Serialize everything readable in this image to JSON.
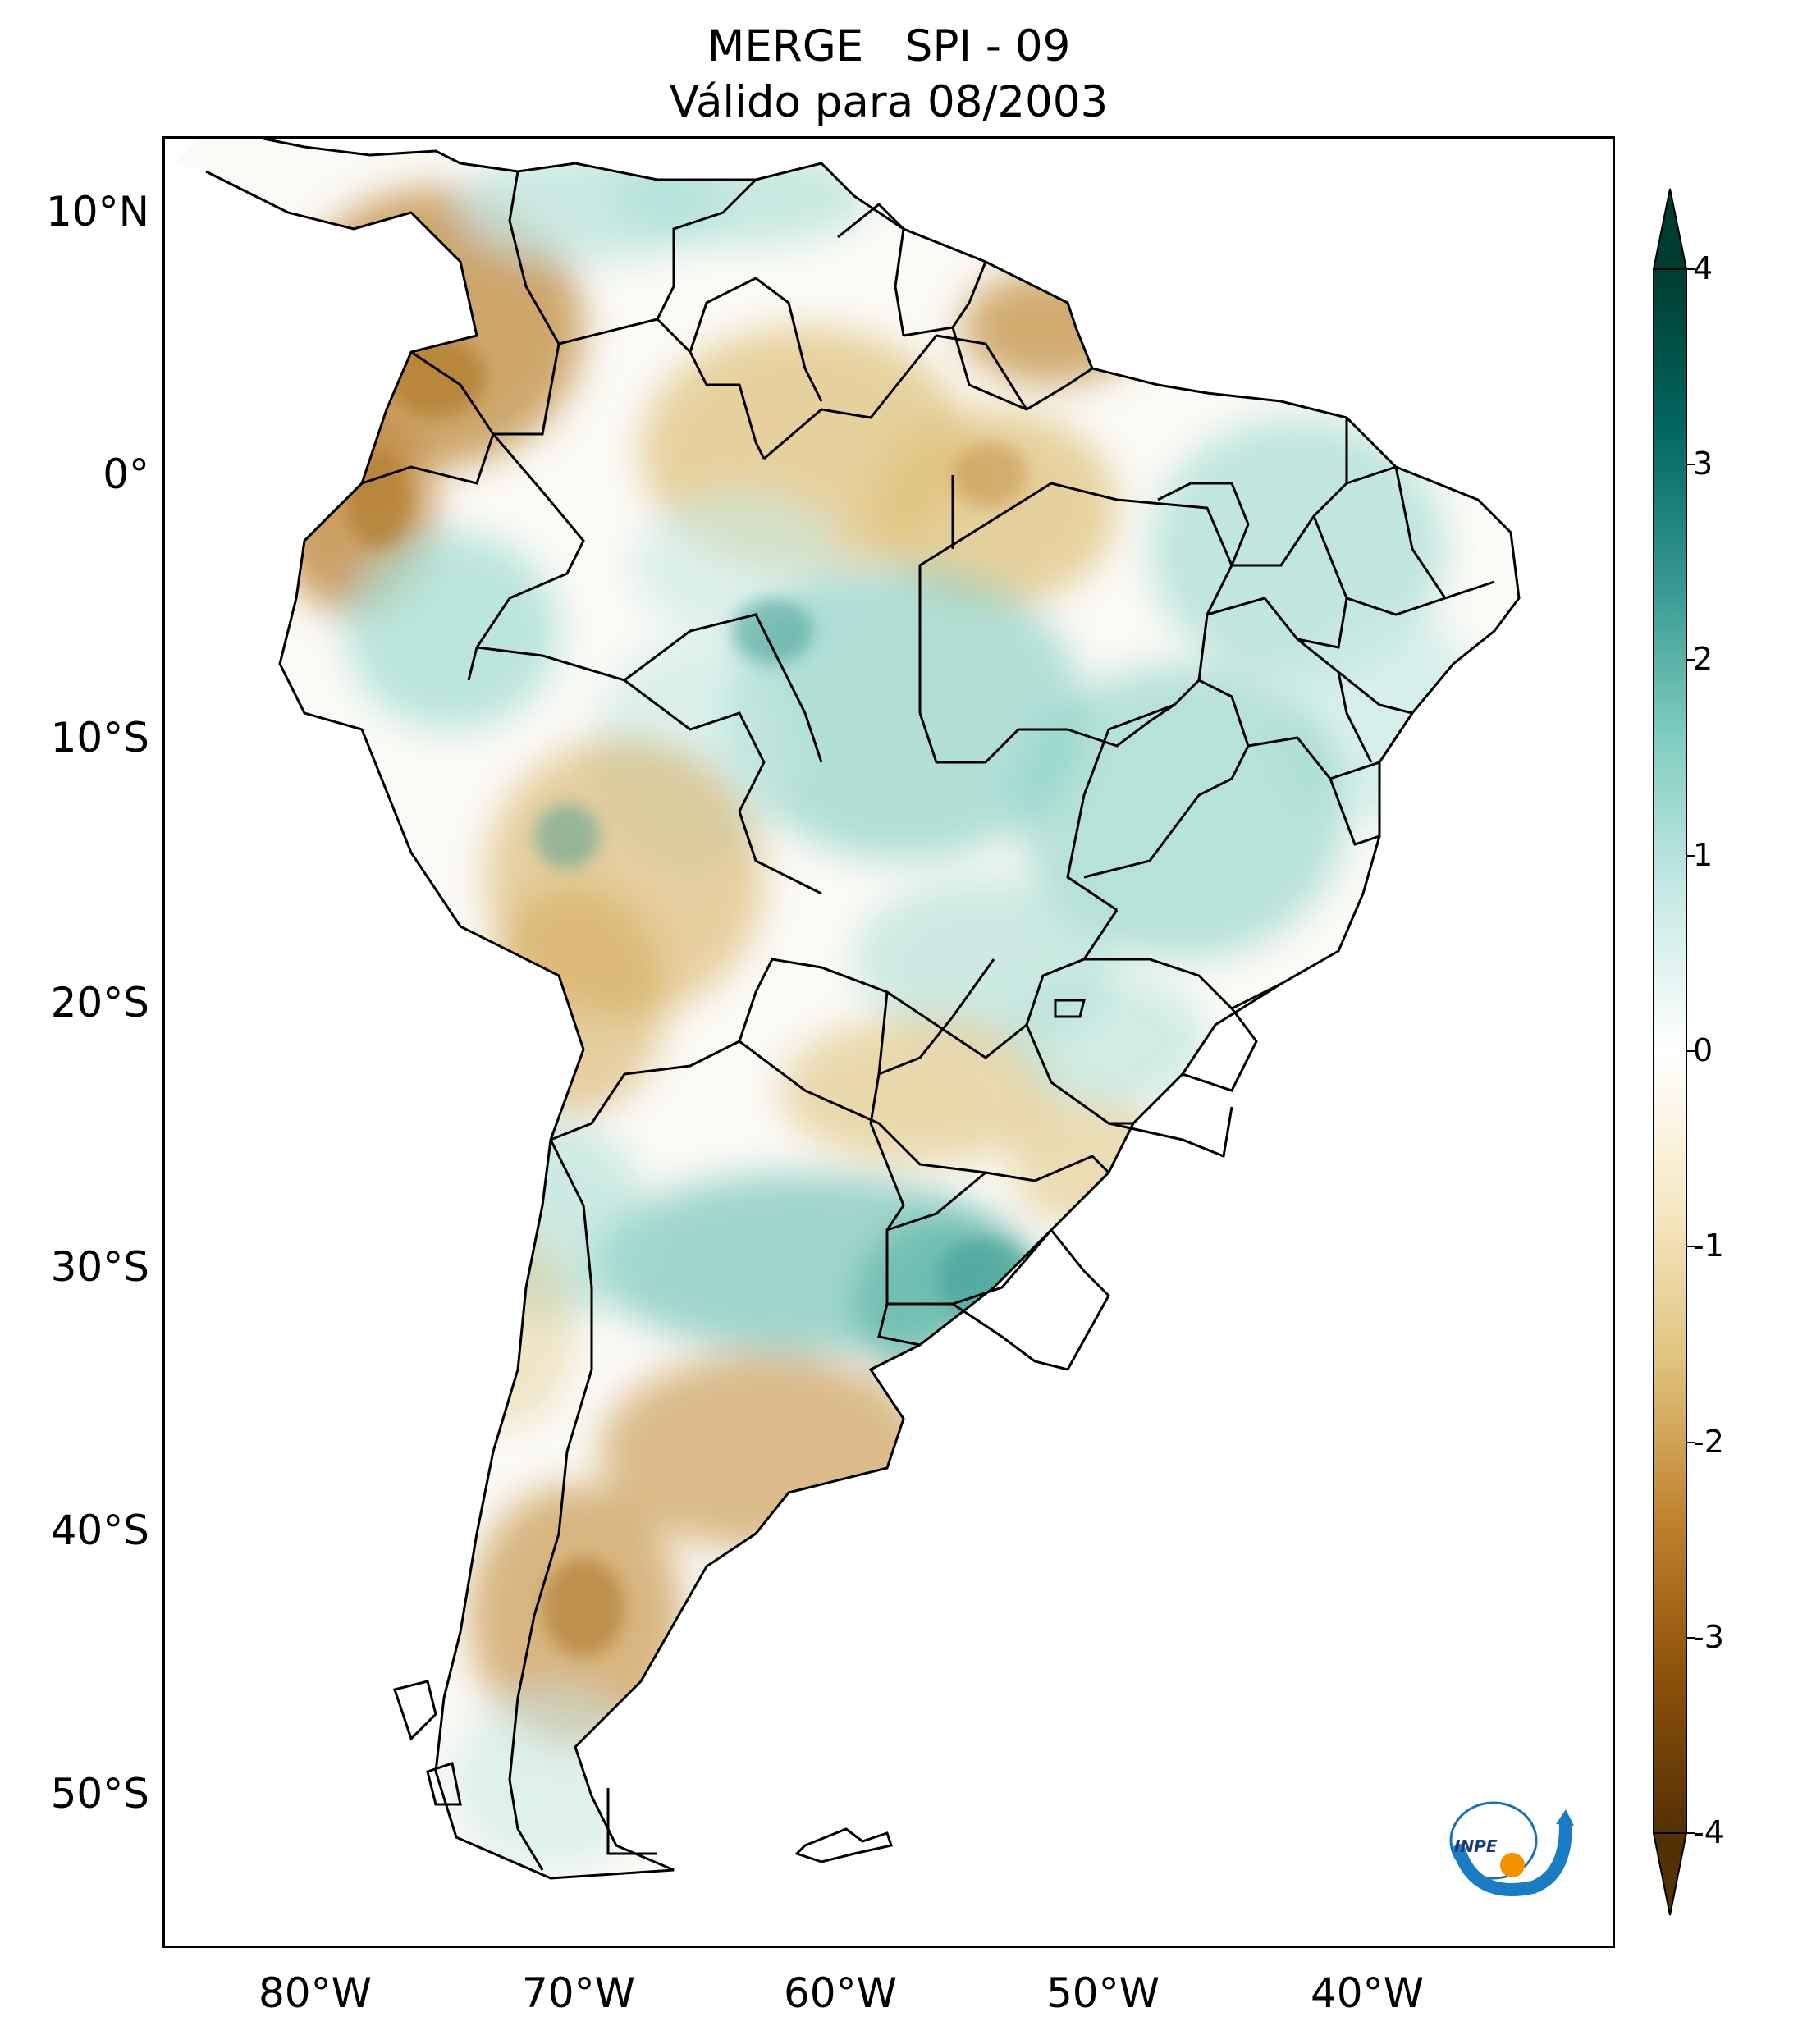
{
  "title_line1": "MERGE   SPI - 09",
  "title_line2": "Válido para 08/2003",
  "lat_labels": [
    "10°N",
    "0°",
    "10°S",
    "20°S",
    "30°S",
    "40°S",
    "50°S"
  ],
  "lon_labels": [
    "80°W",
    "70°W",
    "60°W",
    "50°W",
    "40°W"
  ],
  "colorbar": {
    "ticks": [
      "4",
      "3",
      "2",
      "1",
      "0",
      "-1",
      "-2",
      "-3",
      "-4"
    ],
    "colormap": "BrBG",
    "range": [
      -4,
      4
    ],
    "extend": "both",
    "colors": [
      "#543005",
      "#8c510a",
      "#bf812d",
      "#dfc27d",
      "#f6e8c3",
      "#ffffff",
      "#c7eae5",
      "#80cdc1",
      "#35978f",
      "#01665e",
      "#003c30"
    ]
  },
  "logo_text": "INPE"
}
